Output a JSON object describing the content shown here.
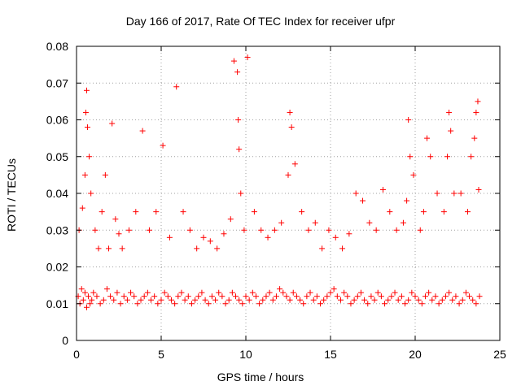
{
  "chart_data": {
    "type": "scatter",
    "title": "Day 166 of 2017, Rate Of TEC Index for receiver ufpr",
    "xlabel": "GPS time / hours",
    "ylabel": "ROTI / TECUs",
    "xlim": [
      0,
      25
    ],
    "ylim": [
      0,
      0.08
    ],
    "xticks": [
      "0",
      "5",
      "10",
      "15",
      "20",
      "25"
    ],
    "yticks": [
      "0",
      "0.01",
      "0.02",
      "0.03",
      "0.04",
      "0.05",
      "0.06",
      "0.07",
      "0.08"
    ],
    "grid": true,
    "marker": "+",
    "marker_color": "#ff0000",
    "series": [
      {
        "x": [
          0.1,
          0.2,
          0.3,
          0.4,
          0.5,
          0.6,
          0.7,
          0.8,
          0.9,
          1.0,
          1.2,
          1.4,
          1.6,
          1.8,
          2.0,
          2.2,
          2.4,
          2.6,
          2.8,
          3.0,
          3.2,
          3.4,
          3.6,
          3.8,
          4.0,
          4.2,
          4.4,
          4.6,
          4.8,
          5.0,
          5.2,
          5.4,
          5.6,
          5.8,
          6.0,
          6.2,
          6.4,
          6.6,
          6.8,
          7.0,
          7.2,
          7.4,
          7.6,
          7.8,
          8.0,
          8.2,
          8.4,
          8.6,
          8.8,
          9.0,
          9.2,
          9.4,
          9.6,
          9.8,
          10.0,
          10.2,
          10.4,
          10.6,
          10.8,
          11.0,
          11.2,
          11.4,
          11.6,
          11.8,
          12.0,
          12.2,
          12.4,
          12.6,
          12.8,
          13.0,
          13.2,
          13.4,
          13.6,
          13.8,
          14.0,
          14.2,
          14.4,
          14.6,
          14.8,
          15.0,
          15.2,
          15.4,
          15.6,
          15.8,
          16.0,
          16.2,
          16.4,
          16.6,
          16.8,
          17.0,
          17.2,
          17.4,
          17.6,
          17.8,
          18.0,
          18.2,
          18.4,
          18.6,
          18.8,
          19.0,
          19.2,
          19.4,
          19.6,
          19.8,
          20.0,
          20.2,
          20.4,
          20.6,
          20.8,
          21.0,
          21.2,
          21.4,
          21.6,
          21.8,
          22.0,
          22.2,
          22.4,
          22.6,
          22.8,
          23.0,
          23.2,
          23.4,
          23.6,
          23.8,
          0.15,
          0.35,
          0.5,
          0.55,
          0.6,
          0.65,
          0.75,
          0.85,
          1.1,
          1.3,
          1.5,
          1.7,
          1.9,
          2.1,
          2.3,
          2.5,
          2.7,
          3.1,
          3.5,
          3.9,
          4.3,
          4.7,
          5.1,
          5.5,
          5.9,
          6.3,
          6.7,
          7.1,
          7.5,
          7.9,
          8.3,
          8.7,
          9.1,
          9.3,
          9.5,
          9.55,
          9.6,
          9.7,
          9.9,
          10.1,
          10.5,
          10.9,
          11.3,
          11.7,
          12.1,
          12.5,
          12.6,
          12.7,
          12.9,
          13.3,
          13.7,
          14.1,
          14.5,
          14.9,
          15.3,
          15.7,
          16.1,
          16.5,
          16.9,
          17.3,
          17.7,
          18.1,
          18.5,
          18.9,
          19.3,
          19.5,
          19.6,
          19.7,
          19.9,
          20.3,
          20.5,
          20.7,
          20.9,
          21.3,
          21.7,
          21.9,
          22.0,
          22.1,
          22.3,
          22.7,
          23.1,
          23.3,
          23.5,
          23.6,
          23.7,
          23.75
        ],
        "y": [
          0.012,
          0.01,
          0.014,
          0.011,
          0.013,
          0.009,
          0.012,
          0.01,
          0.011,
          0.013,
          0.012,
          0.01,
          0.011,
          0.014,
          0.012,
          0.011,
          0.013,
          0.01,
          0.012,
          0.011,
          0.013,
          0.012,
          0.01,
          0.011,
          0.012,
          0.013,
          0.011,
          0.012,
          0.01,
          0.011,
          0.013,
          0.012,
          0.011,
          0.01,
          0.012,
          0.013,
          0.011,
          0.012,
          0.01,
          0.011,
          0.012,
          0.013,
          0.011,
          0.01,
          0.012,
          0.011,
          0.013,
          0.012,
          0.01,
          0.011,
          0.013,
          0.012,
          0.011,
          0.01,
          0.012,
          0.011,
          0.013,
          0.012,
          0.01,
          0.011,
          0.012,
          0.013,
          0.011,
          0.012,
          0.014,
          0.013,
          0.012,
          0.011,
          0.013,
          0.012,
          0.011,
          0.01,
          0.012,
          0.013,
          0.011,
          0.012,
          0.01,
          0.011,
          0.012,
          0.013,
          0.014,
          0.012,
          0.011,
          0.013,
          0.012,
          0.01,
          0.011,
          0.012,
          0.013,
          0.011,
          0.01,
          0.012,
          0.011,
          0.013,
          0.012,
          0.01,
          0.011,
          0.012,
          0.013,
          0.011,
          0.012,
          0.01,
          0.011,
          0.013,
          0.012,
          0.011,
          0.01,
          0.012,
          0.013,
          0.011,
          0.012,
          0.01,
          0.011,
          0.012,
          0.013,
          0.011,
          0.012,
          0.01,
          0.011,
          0.013,
          0.012,
          0.011,
          0.01,
          0.012,
          0.03,
          0.036,
          0.045,
          0.062,
          0.068,
          0.058,
          0.05,
          0.04,
          0.03,
          0.025,
          0.035,
          0.045,
          0.025,
          0.059,
          0.033,
          0.029,
          0.025,
          0.03,
          0.035,
          0.057,
          0.03,
          0.035,
          0.053,
          0.028,
          0.069,
          0.035,
          0.03,
          0.025,
          0.028,
          0.027,
          0.025,
          0.029,
          0.033,
          0.076,
          0.073,
          0.06,
          0.052,
          0.04,
          0.03,
          0.077,
          0.035,
          0.03,
          0.028,
          0.03,
          0.032,
          0.045,
          0.062,
          0.058,
          0.048,
          0.035,
          0.03,
          0.032,
          0.025,
          0.03,
          0.028,
          0.025,
          0.029,
          0.04,
          0.038,
          0.032,
          0.03,
          0.041,
          0.035,
          0.03,
          0.032,
          0.038,
          0.06,
          0.05,
          0.045,
          0.03,
          0.035,
          0.055,
          0.05,
          0.04,
          0.035,
          0.05,
          0.062,
          0.057,
          0.04,
          0.04,
          0.035,
          0.05,
          0.055,
          0.062,
          0.065,
          0.041
        ]
      }
    ]
  }
}
